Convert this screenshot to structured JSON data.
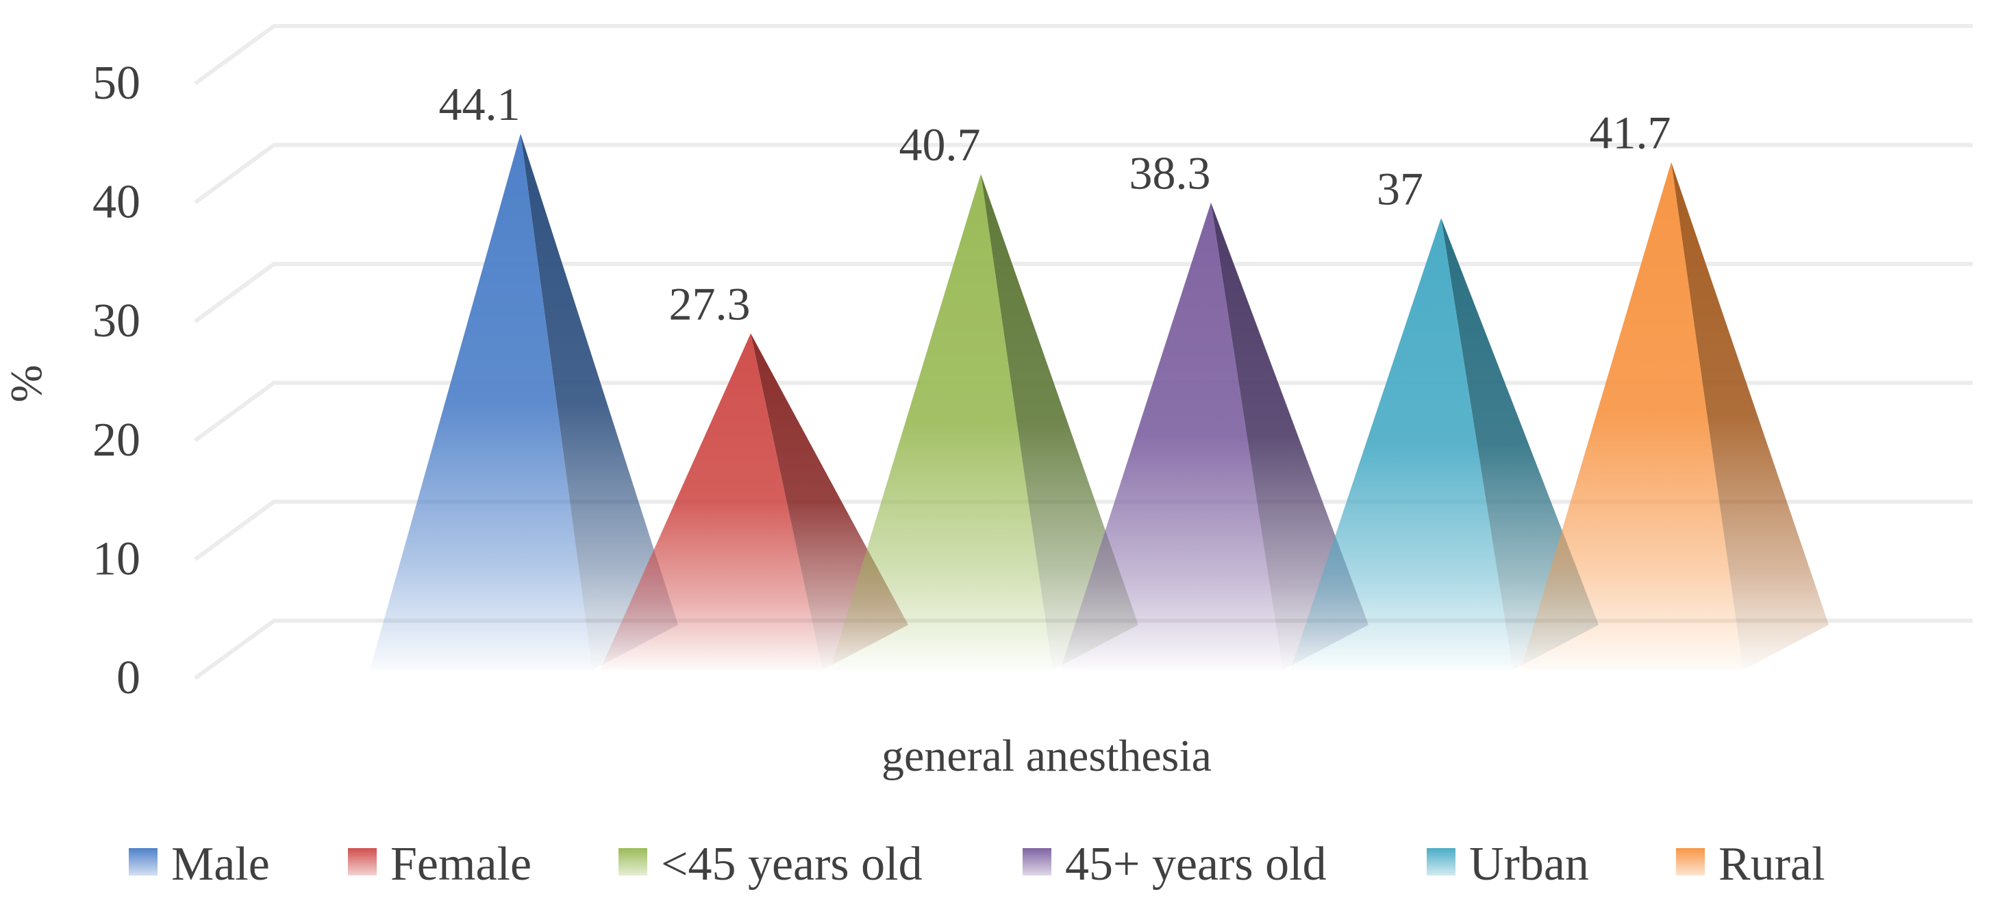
{
  "chart_data": {
    "type": "bar",
    "style": "3d-pyramid",
    "title": "",
    "xlabel": "general anesthesia",
    "ylabel": "%",
    "ylim": [
      0,
      50
    ],
    "yticks": [
      "0",
      "10",
      "20",
      "30",
      "40",
      "50"
    ],
    "grid": true,
    "legend_position": "bottom",
    "categories": [
      "general anesthesia"
    ],
    "series": [
      {
        "name": "Male",
        "values": [
          44.1
        ],
        "label": "44.1",
        "color": "#4F81C9",
        "shade": "#2F5180"
      },
      {
        "name": "Female",
        "values": [
          27.3
        ],
        "label": "27.3",
        "color": "#D0504D",
        "shade": "#8A2E2C"
      },
      {
        "name": "<45 years old",
        "values": [
          40.7
        ],
        "label": "40.7",
        "color": "#9BBB59",
        "shade": "#60793A"
      },
      {
        "name": "45+ years old",
        "values": [
          38.3
        ],
        "label": "38.3",
        "color": "#8064A2",
        "shade": "#4E3C68"
      },
      {
        "name": "Urban",
        "values": [
          37
        ],
        "label": "37",
        "color": "#4BACC6",
        "shade": "#2A6F82"
      },
      {
        "name": "Rural",
        "values": [
          41.7
        ],
        "label": "41.7",
        "color": "#F79646",
        "shade": "#A55E24"
      }
    ]
  }
}
